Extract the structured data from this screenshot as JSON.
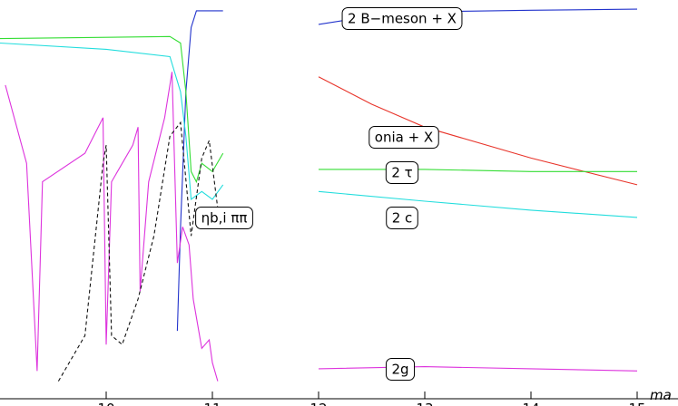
{
  "chart_data": {
    "type": "line",
    "x_label": "ma",
    "xlim": [
      9,
      15.4
    ],
    "ylim": [
      0.0001,
      1
    ],
    "log_y": true,
    "xticks": [
      10,
      11,
      12,
      13,
      14,
      15
    ],
    "series": [
      {
        "name": "2 B−meson + X",
        "color": "#2233cc",
        "dashed": false,
        "x": [
          10.67,
          10.7,
          10.75,
          10.8,
          10.85,
          11.0,
          11.1,
          11.5,
          12,
          12.5,
          13,
          14,
          15
        ],
        "values": [
          0.00048,
          0.0053,
          0.12,
          0.53,
          0.78,
          0.78,
          0.78,
          null,
          0.57,
          0.69,
          0.76,
          0.79,
          0.81
        ]
      },
      {
        "name": "onia + X",
        "color": "#e8342a",
        "dashed": false,
        "x": [
          12,
          12.5,
          13,
          14,
          15
        ],
        "values": [
          0.17,
          0.09,
          0.053,
          0.026,
          0.014
        ]
      },
      {
        "name": "2 τ",
        "color": "#33dd33",
        "dashed": false,
        "x": [
          9.0,
          10.6,
          10.7,
          10.75,
          10.8,
          10.85,
          10.9,
          11.0,
          11.1,
          11.5,
          12,
          13,
          14,
          15
        ],
        "values": [
          0.41,
          0.43,
          0.37,
          0.12,
          0.019,
          0.015,
          0.023,
          0.019,
          0.029,
          null,
          0.02,
          0.02,
          0.019,
          0.019
        ]
      },
      {
        "name": "2 c",
        "color": "#22dddd",
        "dashed": false,
        "x": [
          9.0,
          10.0,
          10.6,
          10.7,
          10.75,
          10.8,
          10.9,
          11.0,
          11.1,
          11.5,
          12,
          13,
          14,
          15
        ],
        "values": [
          0.37,
          0.32,
          0.27,
          0.12,
          0.043,
          0.01,
          0.012,
          0.01,
          0.014,
          null,
          0.012,
          0.0096,
          0.0078,
          0.0066
        ]
      },
      {
        "name": "2g",
        "color": "#dd33dd",
        "dashed": false,
        "x": [
          9.05,
          9.25,
          9.35,
          9.4,
          9.8,
          9.97,
          10.0,
          10.05,
          10.25,
          10.3,
          10.32,
          10.4,
          10.55,
          10.62,
          10.67,
          10.72,
          10.78,
          10.82,
          10.9,
          10.97,
          11.0,
          11.05,
          11.5,
          12,
          13,
          14,
          15
        ],
        "values": [
          0.14,
          0.023,
          0.00019,
          0.015,
          0.029,
          0.066,
          0.00035,
          0.015,
          0.035,
          0.053,
          0.0012,
          0.015,
          0.066,
          0.19,
          0.0023,
          0.0053,
          0.0035,
          0.001,
          0.00032,
          0.00039,
          0.00023,
          0.00015,
          null,
          0.0002,
          0.00021,
          0.0002,
          0.00019
        ]
      },
      {
        "name": "ηb,i ππ",
        "color": "#111111",
        "dashed": true,
        "x": [
          9.55,
          9.8,
          9.97,
          10.0,
          10.05,
          10.15,
          10.3,
          10.45,
          10.6,
          10.7,
          10.8,
          10.9,
          10.97,
          11.05
        ],
        "values": [
          0.00015,
          0.00043,
          0.023,
          0.035,
          0.00043,
          0.00035,
          0.001,
          0.0043,
          0.043,
          0.059,
          0.0043,
          0.026,
          0.039,
          0.0081
        ]
      }
    ]
  }
}
